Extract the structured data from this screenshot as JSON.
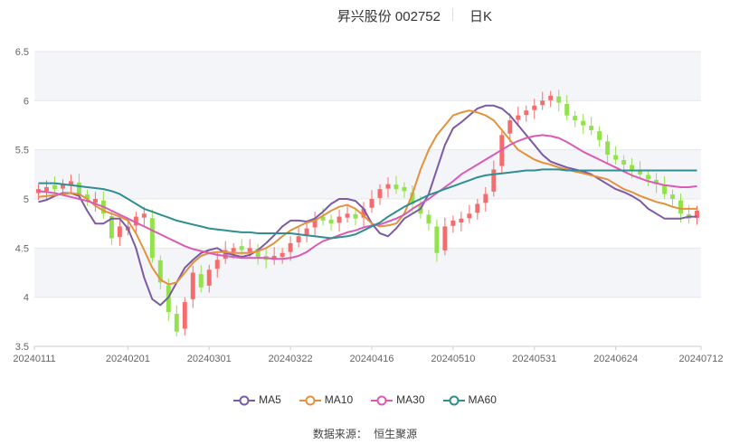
{
  "header": {
    "title": "昇兴股份 002752",
    "period": "日K"
  },
  "source": {
    "label": "数据来源：",
    "value": "恒生聚源"
  },
  "colors": {
    "up": "#f56c6c",
    "down": "#91e24b",
    "grid": "#e8e8e8",
    "band": "#f4f5f9",
    "axis_text": "#666666"
  },
  "chart_data": {
    "type": "candlestick",
    "title": "昇兴股份 002752",
    "ylim": [
      3.5,
      6.5
    ],
    "y_ticks": [
      "3.5",
      "4",
      "4.5",
      "5",
      "5.5",
      "6",
      "6.5"
    ],
    "x_tick_labels": [
      "20240111",
      "20240201",
      "20240301",
      "20240322",
      "20240416",
      "20240510",
      "20240531",
      "20240624",
      "20240712"
    ],
    "x_tick_index": [
      0,
      11,
      21,
      31,
      41,
      51,
      61,
      71,
      81
    ],
    "num_points": 82,
    "legend": [
      "MA5",
      "MA10",
      "MA30",
      "MA60"
    ],
    "ohlc_note": "approximate open/high/low/close per trading day, estimated from the chart",
    "close": [
      5.1,
      5.12,
      5.1,
      5.15,
      5.18,
      5.05,
      5.0,
      5.0,
      4.85,
      4.6,
      4.72,
      4.72,
      4.82,
      4.85,
      4.4,
      4.15,
      3.85,
      3.65,
      3.95,
      4.25,
      4.1,
      4.28,
      4.38,
      4.48,
      4.5,
      4.48,
      4.5,
      4.4,
      4.38,
      4.42,
      4.45,
      4.55,
      4.62,
      4.7,
      4.8,
      4.78,
      4.75,
      4.82,
      4.85,
      4.8,
      4.9,
      5.0,
      5.1,
      5.15,
      5.1,
      5.08,
      4.95,
      4.85,
      4.75,
      4.45,
      4.72,
      4.78,
      4.8,
      4.85,
      4.95,
      5.05,
      5.3,
      5.65,
      5.8,
      5.85,
      5.9,
      5.95,
      6.0,
      6.05,
      5.98,
      5.85,
      5.8,
      5.75,
      5.7,
      5.6,
      5.45,
      5.4,
      5.35,
      5.3,
      5.25,
      5.2,
      5.15,
      5.05,
      5.0,
      4.85,
      4.8,
      4.88
    ],
    "ma5": [
      4.97,
      4.99,
      5.03,
      5.06,
      5.06,
      5.03,
      4.88,
      4.75,
      4.75,
      4.8,
      4.8,
      4.7,
      4.5,
      4.2,
      3.98,
      3.92,
      4.0,
      4.15,
      4.3,
      4.38,
      4.45,
      4.48,
      4.5,
      4.45,
      4.43,
      4.41,
      4.43,
      4.48,
      4.55,
      4.63,
      4.72,
      4.78,
      4.78,
      4.77,
      4.8,
      4.87,
      4.95,
      5.0,
      5.0,
      4.98,
      4.9,
      4.75,
      4.65,
      4.62,
      4.7,
      4.8,
      4.85,
      4.9,
      5.05,
      5.3,
      5.55,
      5.72,
      5.78,
      5.85,
      5.92,
      5.95,
      5.95,
      5.92,
      5.85,
      5.75,
      5.65,
      5.55,
      5.45,
      5.38,
      5.35,
      5.32,
      5.3,
      5.28,
      5.25,
      5.2,
      5.15,
      5.1,
      5.07,
      5.03,
      4.98,
      4.9,
      4.85,
      4.8,
      4.8,
      4.8,
      4.82,
      4.82
    ],
    "ma10": [
      5.02,
      5.03,
      5.04,
      5.05,
      5.06,
      5.05,
      5.0,
      4.93,
      4.88,
      4.85,
      4.82,
      4.78,
      4.65,
      4.48,
      4.3,
      4.18,
      4.13,
      4.15,
      4.25,
      4.35,
      4.42,
      4.45,
      4.46,
      4.46,
      4.45,
      4.45,
      4.45,
      4.47,
      4.5,
      4.55,
      4.62,
      4.68,
      4.72,
      4.76,
      4.78,
      4.83,
      4.88,
      4.92,
      4.94,
      4.9,
      4.83,
      4.75,
      4.72,
      4.73,
      4.75,
      4.85,
      5.05,
      5.3,
      5.5,
      5.65,
      5.75,
      5.85,
      5.88,
      5.9,
      5.88,
      5.85,
      5.8,
      5.7,
      5.6,
      5.5,
      5.45,
      5.4,
      5.37,
      5.35,
      5.32,
      5.3,
      5.28,
      5.26,
      5.24,
      5.22,
      5.2,
      5.15,
      5.1,
      5.07,
      5.03,
      5.0,
      4.97,
      4.95,
      4.92,
      4.9,
      4.9,
      4.9
    ],
    "ma30": [
      5.08,
      5.07,
      5.06,
      5.04,
      5.02,
      5.0,
      4.98,
      4.95,
      4.92,
      4.88,
      4.84,
      4.8,
      4.76,
      4.72,
      4.68,
      4.64,
      4.6,
      4.56,
      4.52,
      4.49,
      4.47,
      4.45,
      4.43,
      4.42,
      4.41,
      4.4,
      4.4,
      4.4,
      4.4,
      4.39,
      4.39,
      4.4,
      4.42,
      4.46,
      4.52,
      4.57,
      4.6,
      4.63,
      4.66,
      4.68,
      4.71,
      4.73,
      4.74,
      4.77,
      4.8,
      4.84,
      4.9,
      4.95,
      5.0,
      5.06,
      5.12,
      5.18,
      5.25,
      5.3,
      5.35,
      5.4,
      5.45,
      5.5,
      5.55,
      5.59,
      5.62,
      5.64,
      5.65,
      5.64,
      5.62,
      5.58,
      5.53,
      5.48,
      5.44,
      5.4,
      5.36,
      5.32,
      5.28,
      5.24,
      5.21,
      5.18,
      5.16,
      5.14,
      5.13,
      5.12,
      5.12,
      5.13
    ],
    "ma60": [
      5.16,
      5.16,
      5.16,
      5.15,
      5.14,
      5.13,
      5.12,
      5.11,
      5.1,
      5.08,
      5.05,
      5.0,
      4.95,
      4.9,
      4.87,
      4.84,
      4.81,
      4.78,
      4.76,
      4.74,
      4.72,
      4.7,
      4.69,
      4.68,
      4.67,
      4.66,
      4.66,
      4.65,
      4.65,
      4.65,
      4.65,
      4.65,
      4.64,
      4.63,
      4.62,
      4.61,
      4.6,
      4.61,
      4.62,
      4.64,
      4.68,
      4.72,
      4.76,
      4.82,
      4.87,
      4.92,
      4.96,
      5.0,
      5.04,
      5.07,
      5.1,
      5.13,
      5.16,
      5.19,
      5.22,
      5.24,
      5.25,
      5.26,
      5.27,
      5.28,
      5.29,
      5.29,
      5.3,
      5.3,
      5.3,
      5.29,
      5.29,
      5.29,
      5.29,
      5.29,
      5.29,
      5.29,
      5.29,
      5.29,
      5.29,
      5.29,
      5.29,
      5.29,
      5.29,
      5.29,
      5.29,
      5.29
    ],
    "series_colors": {
      "MA5": "#7b5aa6",
      "MA10": "#e3923b",
      "MA30": "#d95bb6",
      "MA60": "#2f8e91"
    },
    "grid": true,
    "legend_position": "bottom"
  }
}
